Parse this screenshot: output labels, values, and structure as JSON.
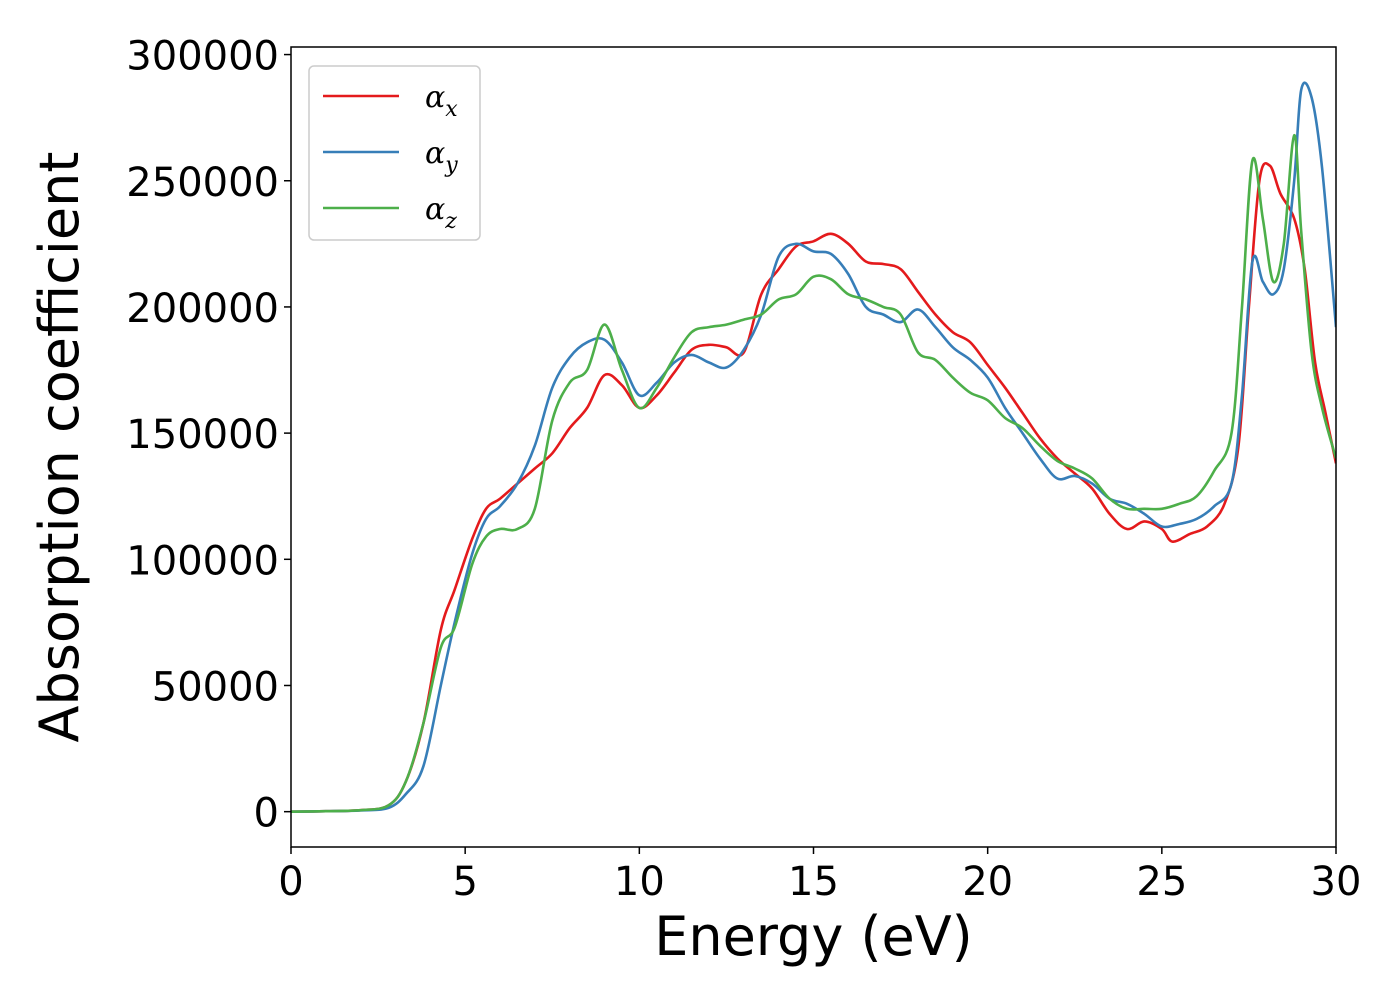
{
  "chart_data": {
    "type": "line",
    "xlabel": "Energy (eV)",
    "ylabel": "Absorption coefficient",
    "xlim": [
      0,
      30
    ],
    "ylim": [
      -14000,
      303000
    ],
    "xticks": [
      0,
      5,
      10,
      15,
      20,
      25,
      30
    ],
    "xtick_labels": [
      "0",
      "5",
      "10",
      "15",
      "20",
      "25",
      "30"
    ],
    "yticks": [
      0,
      50000,
      100000,
      150000,
      200000,
      250000,
      300000
    ],
    "ytick_labels": [
      "0",
      "50000",
      "100000",
      "150000",
      "200000",
      "250000",
      "300000"
    ],
    "grid": false,
    "legend_position": "top-left",
    "series": [
      {
        "name": "αx",
        "name_base": "α",
        "name_sub": "x",
        "color": "#e41a1c",
        "points": [
          [
            0,
            0
          ],
          [
            1,
            200
          ],
          [
            2,
            600
          ],
          [
            2.8,
            2500
          ],
          [
            3.3,
            12000
          ],
          [
            3.8,
            35000
          ],
          [
            4.3,
            72000
          ],
          [
            4.7,
            88000
          ],
          [
            5.2,
            108000
          ],
          [
            5.6,
            120000
          ],
          [
            6.0,
            124000
          ],
          [
            6.5,
            130000
          ],
          [
            7.0,
            136000
          ],
          [
            7.5,
            142000
          ],
          [
            8.0,
            152000
          ],
          [
            8.5,
            160000
          ],
          [
            9.0,
            173000
          ],
          [
            9.5,
            169000
          ],
          [
            10.0,
            160000
          ],
          [
            10.5,
            165000
          ],
          [
            11.0,
            174000
          ],
          [
            11.5,
            183000
          ],
          [
            12.0,
            185000
          ],
          [
            12.5,
            184000
          ],
          [
            13.0,
            182000
          ],
          [
            13.5,
            205000
          ],
          [
            14.0,
            215000
          ],
          [
            14.5,
            224000
          ],
          [
            15.0,
            226000
          ],
          [
            15.5,
            229000
          ],
          [
            16.0,
            225000
          ],
          [
            16.5,
            218000
          ],
          [
            17.0,
            217000
          ],
          [
            17.5,
            215000
          ],
          [
            18.0,
            206000
          ],
          [
            18.5,
            197000
          ],
          [
            19.0,
            190000
          ],
          [
            19.5,
            186000
          ],
          [
            20.0,
            177000
          ],
          [
            20.5,
            168000
          ],
          [
            21.0,
            158000
          ],
          [
            21.5,
            148000
          ],
          [
            22.0,
            140000
          ],
          [
            22.5,
            134000
          ],
          [
            23.0,
            128000
          ],
          [
            23.5,
            118000
          ],
          [
            24.0,
            112000
          ],
          [
            24.5,
            115000
          ],
          [
            25.0,
            112000
          ],
          [
            25.3,
            107000
          ],
          [
            25.8,
            110000
          ],
          [
            26.3,
            113000
          ],
          [
            26.8,
            122000
          ],
          [
            27.2,
            145000
          ],
          [
            27.5,
            200000
          ],
          [
            27.8,
            250000
          ],
          [
            28.1,
            256000
          ],
          [
            28.4,
            245000
          ],
          [
            28.8,
            235000
          ],
          [
            29.1,
            215000
          ],
          [
            29.4,
            178000
          ],
          [
            29.7,
            158000
          ],
          [
            30.0,
            138000
          ]
        ]
      },
      {
        "name": "αy",
        "name_base": "α",
        "name_sub": "y",
        "color": "#377eb8",
        "points": [
          [
            0,
            0
          ],
          [
            1,
            200
          ],
          [
            2,
            500
          ],
          [
            2.8,
            1500
          ],
          [
            3.3,
            7000
          ],
          [
            3.8,
            18000
          ],
          [
            4.3,
            50000
          ],
          [
            4.7,
            75000
          ],
          [
            5.2,
            102000
          ],
          [
            5.6,
            116000
          ],
          [
            6.0,
            121000
          ],
          [
            6.5,
            130000
          ],
          [
            7.0,
            145000
          ],
          [
            7.5,
            168000
          ],
          [
            8.0,
            180000
          ],
          [
            8.5,
            186000
          ],
          [
            9.0,
            187000
          ],
          [
            9.5,
            178000
          ],
          [
            10.0,
            165000
          ],
          [
            10.5,
            170000
          ],
          [
            11.0,
            178000
          ],
          [
            11.5,
            181000
          ],
          [
            12.0,
            178000
          ],
          [
            12.5,
            176000
          ],
          [
            13.0,
            183000
          ],
          [
            13.5,
            197000
          ],
          [
            14.0,
            220000
          ],
          [
            14.5,
            225000
          ],
          [
            15.0,
            222000
          ],
          [
            15.5,
            221000
          ],
          [
            16.0,
            213000
          ],
          [
            16.5,
            200000
          ],
          [
            17.0,
            197000
          ],
          [
            17.5,
            194000
          ],
          [
            18.0,
            199000
          ],
          [
            18.5,
            192000
          ],
          [
            19.0,
            184000
          ],
          [
            19.5,
            179000
          ],
          [
            20.0,
            172000
          ],
          [
            20.5,
            160000
          ],
          [
            21.0,
            150000
          ],
          [
            21.5,
            140000
          ],
          [
            22.0,
            132000
          ],
          [
            22.5,
            133000
          ],
          [
            23.0,
            130000
          ],
          [
            23.5,
            124000
          ],
          [
            24.0,
            122000
          ],
          [
            24.5,
            118000
          ],
          [
            25.0,
            113000
          ],
          [
            25.5,
            114000
          ],
          [
            26.0,
            116000
          ],
          [
            26.5,
            121000
          ],
          [
            27.0,
            130000
          ],
          [
            27.3,
            165000
          ],
          [
            27.6,
            218000
          ],
          [
            27.9,
            210000
          ],
          [
            28.2,
            205000
          ],
          [
            28.5,
            215000
          ],
          [
            28.8,
            250000
          ],
          [
            29.0,
            286000
          ],
          [
            29.3,
            283000
          ],
          [
            29.6,
            255000
          ],
          [
            30.0,
            192000
          ]
        ]
      },
      {
        "name": "αz",
        "name_base": "α",
        "name_sub": "z",
        "color": "#4daf4a",
        "points": [
          [
            0,
            0
          ],
          [
            1,
            200
          ],
          [
            2,
            600
          ],
          [
            2.8,
            2500
          ],
          [
            3.3,
            12000
          ],
          [
            3.8,
            35000
          ],
          [
            4.3,
            65000
          ],
          [
            4.7,
            73000
          ],
          [
            5.2,
            98000
          ],
          [
            5.6,
            109000
          ],
          [
            6.0,
            112000
          ],
          [
            6.5,
            112000
          ],
          [
            7.0,
            120000
          ],
          [
            7.5,
            155000
          ],
          [
            8.0,
            170000
          ],
          [
            8.5,
            175000
          ],
          [
            9.0,
            193000
          ],
          [
            9.5,
            175000
          ],
          [
            10.0,
            160000
          ],
          [
            10.5,
            168000
          ],
          [
            11.0,
            180000
          ],
          [
            11.5,
            190000
          ],
          [
            12.0,
            192000
          ],
          [
            12.5,
            193000
          ],
          [
            13.0,
            195000
          ],
          [
            13.5,
            197000
          ],
          [
            14.0,
            203000
          ],
          [
            14.5,
            205000
          ],
          [
            15.0,
            212000
          ],
          [
            15.5,
            211000
          ],
          [
            16.0,
            205000
          ],
          [
            16.5,
            203000
          ],
          [
            17.0,
            200000
          ],
          [
            17.5,
            197000
          ],
          [
            18.0,
            182000
          ],
          [
            18.5,
            179000
          ],
          [
            19.0,
            172000
          ],
          [
            19.5,
            166000
          ],
          [
            20.0,
            163000
          ],
          [
            20.5,
            156000
          ],
          [
            21.0,
            152000
          ],
          [
            21.5,
            145000
          ],
          [
            22.0,
            139000
          ],
          [
            22.5,
            136000
          ],
          [
            23.0,
            132000
          ],
          [
            23.5,
            124000
          ],
          [
            24.0,
            120000
          ],
          [
            24.5,
            120000
          ],
          [
            25.0,
            120000
          ],
          [
            25.5,
            122000
          ],
          [
            26.0,
            125000
          ],
          [
            26.5,
            135000
          ],
          [
            27.0,
            150000
          ],
          [
            27.3,
            200000
          ],
          [
            27.6,
            258000
          ],
          [
            27.9,
            235000
          ],
          [
            28.2,
            210000
          ],
          [
            28.5,
            225000
          ],
          [
            28.8,
            268000
          ],
          [
            29.0,
            230000
          ],
          [
            29.3,
            182000
          ],
          [
            29.6,
            160000
          ],
          [
            30.0,
            140000
          ]
        ]
      }
    ]
  }
}
